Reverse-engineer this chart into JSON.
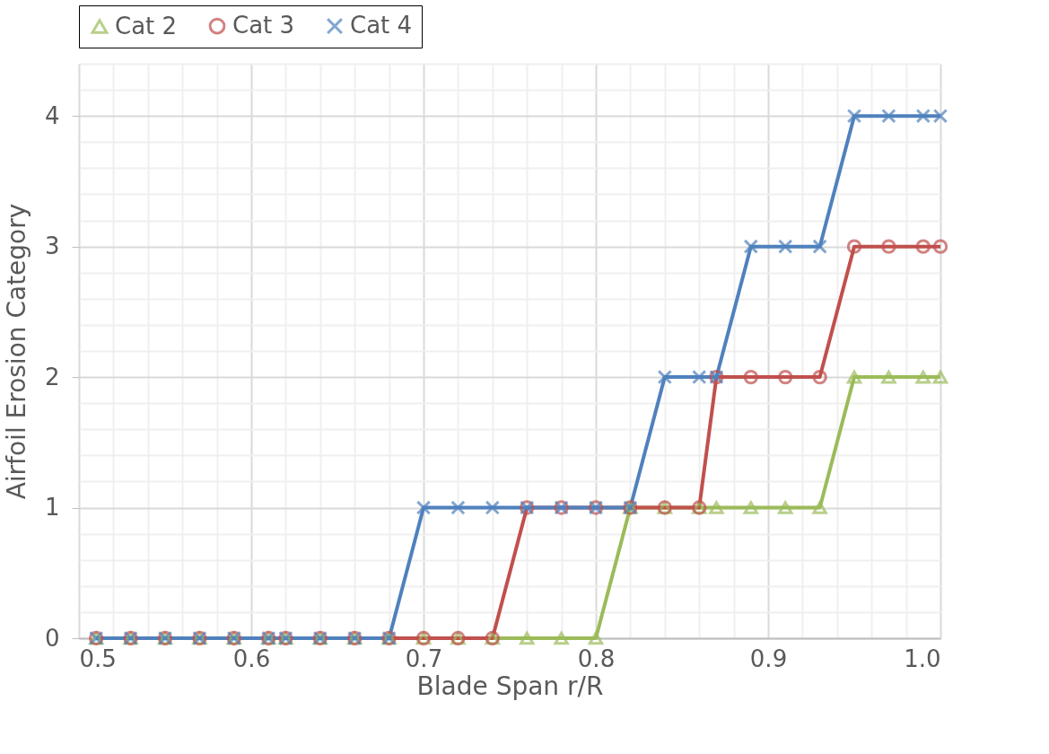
{
  "chart_data": {
    "type": "line",
    "xlabel": "Blade Span r/R",
    "ylabel": "Airfoil Erosion Category",
    "x": [
      0.51,
      0.53,
      0.55,
      0.57,
      0.59,
      0.61,
      0.62,
      0.64,
      0.66,
      0.68,
      0.7,
      0.72,
      0.74,
      0.76,
      0.78,
      0.8,
      0.82,
      0.84,
      0.86,
      0.87,
      0.89,
      0.91,
      0.93,
      0.95,
      0.97,
      0.99,
      1.0
    ],
    "series": [
      {
        "name": "Cat 2",
        "color": "#9bbb59",
        "marker": "triangle",
        "values": [
          0,
          0,
          0,
          0,
          0,
          0,
          0,
          0,
          0,
          0,
          0,
          0,
          0,
          0,
          0,
          0,
          1,
          1,
          1,
          1,
          1,
          1,
          1,
          2,
          2,
          2,
          2
        ]
      },
      {
        "name": "Cat 3",
        "color": "#c0504d",
        "marker": "circle",
        "values": [
          0,
          0,
          0,
          0,
          0,
          0,
          0,
          0,
          0,
          0,
          0,
          0,
          0,
          1,
          1,
          1,
          1,
          1,
          1,
          2,
          2,
          2,
          2,
          3,
          3,
          3,
          3
        ]
      },
      {
        "name": "Cat 4",
        "color": "#4f81bd",
        "marker": "cross",
        "values": [
          0,
          0,
          0,
          0,
          0,
          0,
          0,
          0,
          0,
          0,
          1,
          1,
          1,
          1,
          1,
          1,
          1,
          2,
          2,
          2,
          3,
          3,
          3,
          4,
          4,
          4,
          4
        ]
      }
    ],
    "xlim": [
      0.5,
      1.0
    ],
    "ylim": [
      0,
      4.4
    ],
    "xticks": [
      0.5,
      {
        "value": 0.52,
        "label": null
      },
      {
        "value": 0.54,
        "label": null
      },
      {
        "value": 0.56,
        "label": null
      },
      {
        "value": 0.58,
        "label": null
      },
      0.6,
      {
        "value": 0.62,
        "label": null
      },
      {
        "value": 0.64,
        "label": null
      },
      {
        "value": 0.66,
        "label": null
      },
      {
        "value": 0.68,
        "label": null
      },
      0.7,
      {
        "value": 0.72,
        "label": null
      },
      {
        "value": 0.74,
        "label": null
      },
      {
        "value": 0.76,
        "label": null
      },
      {
        "value": 0.78,
        "label": null
      },
      0.8,
      {
        "value": 0.82,
        "label": null
      },
      {
        "value": 0.84,
        "label": null
      },
      {
        "value": 0.86,
        "label": null
      },
      {
        "value": 0.88,
        "label": null
      },
      0.9,
      {
        "value": 0.92,
        "label": null
      },
      {
        "value": 0.94,
        "label": null
      },
      {
        "value": 0.96,
        "label": null
      },
      {
        "value": 0.98,
        "label": null
      },
      {
        "value": 1.0,
        "label": "1.0"
      }
    ],
    "yticks": [
      0,
      {
        "value": 0.2,
        "label": null
      },
      {
        "value": 0.4,
        "label": null
      },
      {
        "value": 0.6,
        "label": null
      },
      {
        "value": 0.8,
        "label": null
      },
      1,
      {
        "value": 1.2,
        "label": null
      },
      {
        "value": 1.4,
        "label": null
      },
      {
        "value": 1.6,
        "label": null
      },
      {
        "value": 1.8,
        "label": null
      },
      2,
      {
        "value": 2.2,
        "label": null
      },
      {
        "value": 2.4,
        "label": null
      },
      {
        "value": 2.6,
        "label": null
      },
      {
        "value": 2.8,
        "label": null
      },
      3,
      {
        "value": 3.2,
        "label": null
      },
      {
        "value": 3.4,
        "label": null
      },
      {
        "value": 3.6,
        "label": null
      },
      {
        "value": 3.8,
        "label": null
      },
      4,
      {
        "value": 4.2,
        "label": null
      },
      {
        "value": 4.4,
        "label": null
      }
    ],
    "grid": true,
    "legend": "top",
    "line_style": "solid"
  }
}
